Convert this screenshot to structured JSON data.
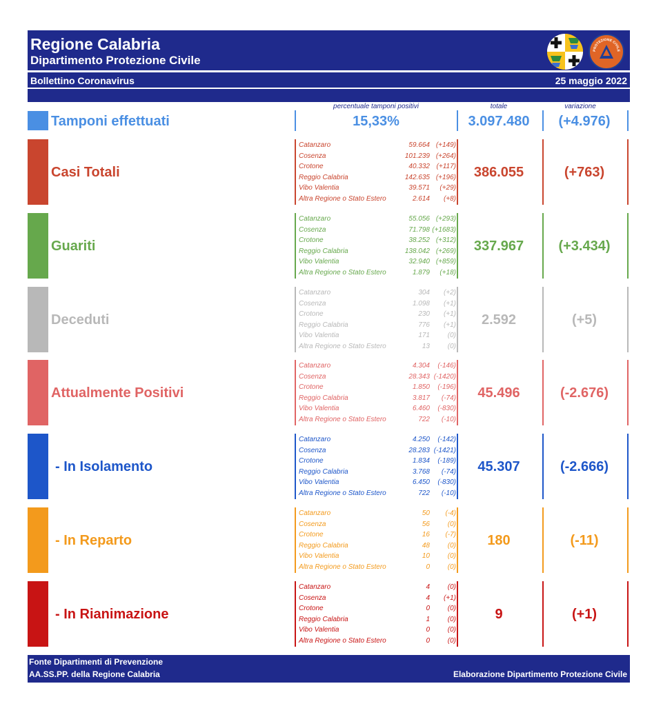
{
  "header": {
    "title": "Regione Calabria",
    "subtitle": "Dipartimento Protezione Civile",
    "bulletin": "Bollettino Coronavirus",
    "date": "25 maggio 2022",
    "pc_logo_text": "PROTEZIONE CIVILE"
  },
  "columns": {
    "percent_head": "percentuale tamponi positivi",
    "total_head": "totale",
    "change_head": "variazione"
  },
  "tamponi": {
    "label": "Tamponi effettuati",
    "percent": "15,33%",
    "total": "3.097.480",
    "change": "(+4.976)",
    "color": "#4a8fe3"
  },
  "sections": [
    {
      "key": "casi",
      "label": "Casi Totali",
      "color": "#c9452e",
      "total": "386.055",
      "change": "(+763)",
      "rows": [
        {
          "name": "Catanzaro",
          "value": "59.664",
          "delta": "(+149)"
        },
        {
          "name": "Cosenza",
          "value": "101.239",
          "delta": "(+264)"
        },
        {
          "name": "Crotone",
          "value": "40.332",
          "delta": "(+117)"
        },
        {
          "name": "Reggio Calabria",
          "value": "142.635",
          "delta": "(+196)"
        },
        {
          "name": "Vibo Valentia",
          "value": "39.571",
          "delta": "(+29)"
        },
        {
          "name": "Altra Regione o Stato Estero",
          "value": "2.614",
          "delta": "(+8)"
        }
      ]
    },
    {
      "key": "guariti",
      "label": "Guariti",
      "color": "#66a84c",
      "total": "337.967",
      "change": "(+3.434)",
      "rows": [
        {
          "name": "Catanzaro",
          "value": "55.056",
          "delta": "(+293)"
        },
        {
          "name": "Cosenza",
          "value": "71.798",
          "delta": "(+1683)"
        },
        {
          "name": "Crotone",
          "value": "38.252",
          "delta": "(+312)"
        },
        {
          "name": "Reggio Calabria",
          "value": "138.042",
          "delta": "(+269)"
        },
        {
          "name": "Vibo Valentia",
          "value": "32.940",
          "delta": "(+859)"
        },
        {
          "name": "Altra Regione o Stato Estero",
          "value": "1.879",
          "delta": "(+18)"
        }
      ]
    },
    {
      "key": "deceduti",
      "label": "Deceduti",
      "color": "#b8b8b8",
      "total": "2.592",
      "change": "(+5)",
      "rows": [
        {
          "name": "Catanzaro",
          "value": "304",
          "delta": "(+2)"
        },
        {
          "name": "Cosenza",
          "value": "1.098",
          "delta": "(+1)"
        },
        {
          "name": "Crotone",
          "value": "230",
          "delta": "(+1)"
        },
        {
          "name": "Reggio Calabria",
          "value": "776",
          "delta": "(+1)"
        },
        {
          "name": "Vibo Valentia",
          "value": "171",
          "delta": "(0)"
        },
        {
          "name": "Altra Regione o Stato Estero",
          "value": "13",
          "delta": "(0)"
        }
      ]
    },
    {
      "key": "positivi",
      "label": "Attualmente Positivi",
      "color": "#e06464",
      "total": "45.496",
      "change": "(-2.676)",
      "rows": [
        {
          "name": "Catanzaro",
          "value": "4.304",
          "delta": "(-146)"
        },
        {
          "name": "Cosenza",
          "value": "28.343",
          "delta": "(-1420)"
        },
        {
          "name": "Crotone",
          "value": "1.850",
          "delta": "(-196)"
        },
        {
          "name": "Reggio Calabria",
          "value": "3.817",
          "delta": "(-74)"
        },
        {
          "name": "Vibo Valentia",
          "value": "6.460",
          "delta": "(-830)"
        },
        {
          "name": "Altra Regione o Stato Estero",
          "value": "722",
          "delta": "(-10)"
        }
      ]
    },
    {
      "key": "isolamento",
      "label": "- In Isolamento",
      "color": "#1d56c9",
      "total": "45.307",
      "change": "(-2.666)",
      "rows": [
        {
          "name": "Catanzaro",
          "value": "4.250",
          "delta": "(-142)"
        },
        {
          "name": "Cosenza",
          "value": "28.283",
          "delta": "(-1421)"
        },
        {
          "name": "Crotone",
          "value": "1.834",
          "delta": "(-189)"
        },
        {
          "name": "Reggio Calabria",
          "value": "3.768",
          "delta": "(-74)"
        },
        {
          "name": "Vibo Valentia",
          "value": "6.450",
          "delta": "(-830)"
        },
        {
          "name": "Altra Regione o Stato Estero",
          "value": "722",
          "delta": "(-10)"
        }
      ]
    },
    {
      "key": "reparto",
      "label": "- In Reparto",
      "color": "#f39a1c",
      "total": "180",
      "change": "(-11)",
      "rows": [
        {
          "name": "Catanzaro",
          "value": "50",
          "delta": "(-4)"
        },
        {
          "name": "Cosenza",
          "value": "56",
          "delta": "(0)"
        },
        {
          "name": "Crotone",
          "value": "16",
          "delta": "(-7)"
        },
        {
          "name": "Reggio Calabria",
          "value": "48",
          "delta": "(0)"
        },
        {
          "name": "Vibo Valentia",
          "value": "10",
          "delta": "(0)"
        },
        {
          "name": "Altra Regione o Stato Estero",
          "value": "0",
          "delta": "(0)"
        }
      ]
    },
    {
      "key": "rianimazione",
      "label": "- In Rianimazione",
      "color": "#c81414",
      "total": "9",
      "change": "(+1)",
      "rows": [
        {
          "name": "Catanzaro",
          "value": "4",
          "delta": "(0)"
        },
        {
          "name": "Cosenza",
          "value": "4",
          "delta": "(+1)"
        },
        {
          "name": "Crotone",
          "value": "0",
          "delta": "(0)"
        },
        {
          "name": "Reggio Calabria",
          "value": "1",
          "delta": "(0)"
        },
        {
          "name": "Vibo Valentia",
          "value": "0",
          "delta": "(0)"
        },
        {
          "name": "Altra Regione o Stato Estero",
          "value": "0",
          "delta": "(0)"
        }
      ]
    }
  ],
  "footer": {
    "source_line1": "Fonte Dipartimenti di Prevenzione",
    "source_line2": "AA.SS.PP.  della Regione Calabria",
    "credit": "Elaborazione Dipartimento Protezione Civile"
  }
}
